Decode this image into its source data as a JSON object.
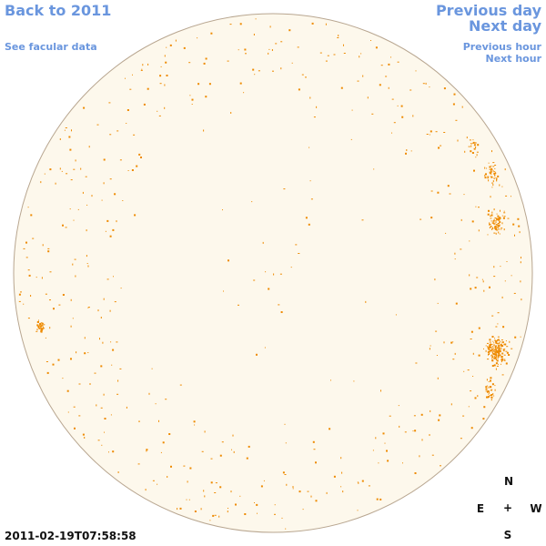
{
  "nav": {
    "back": "Back to 2011",
    "see_facular": "See facular data",
    "previous_day": "Previous day",
    "next_day": "Next day",
    "previous_hour": "Previous hour",
    "next_hour": "Next hour"
  },
  "timestamp": "2011-02-19T07:58:58",
  "compass": {
    "north": "N",
    "east": "E",
    "center": "+",
    "west": "W",
    "south": "S"
  },
  "colors": {
    "disk_fill": "#fdf8ec",
    "disk_outline": "#b8a690",
    "facula": "#ee8a00",
    "link": "#6a96de"
  }
}
